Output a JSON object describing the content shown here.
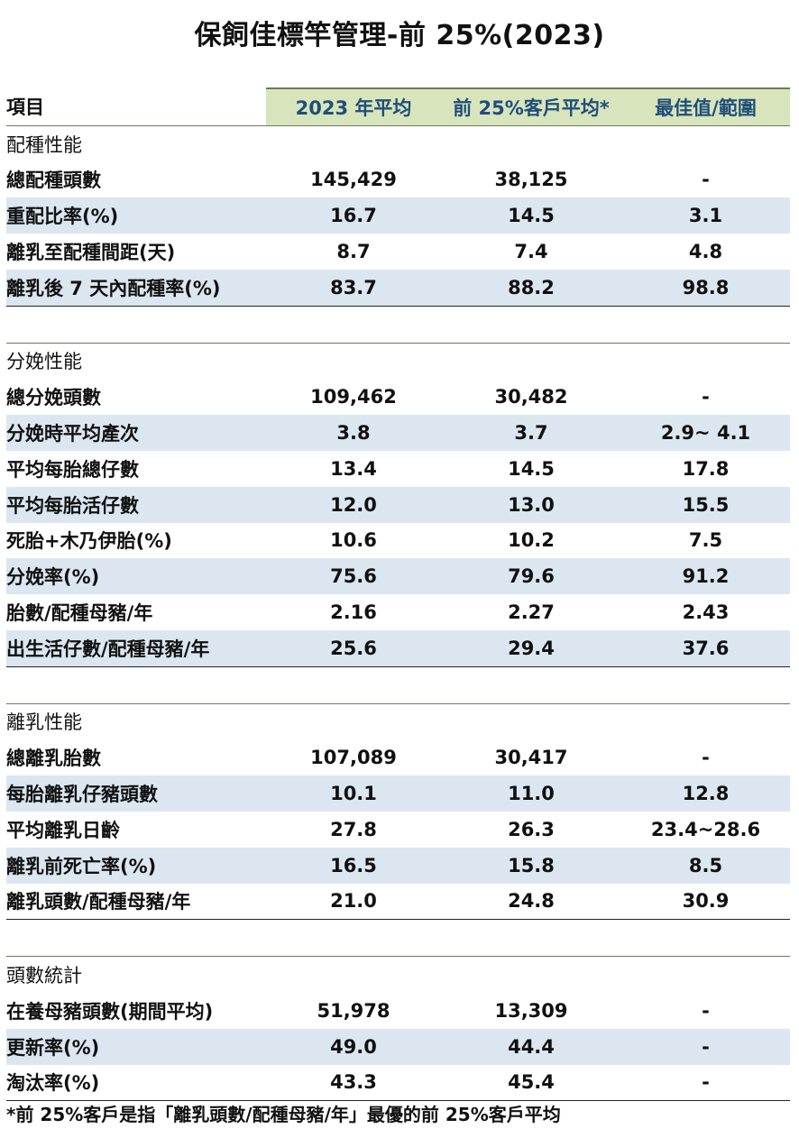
{
  "title": "保飼佳標竿管理-前 25%(2023)",
  "headers": {
    "item": "項目",
    "avg": "2023 年平均",
    "top25": "前 25%客戶平均*",
    "best": "最佳值/範圍"
  },
  "sections": [
    {
      "name": "配種性能",
      "rows": [
        {
          "item": "總配種頭數",
          "avg": "145,429",
          "top25": "38,125",
          "best": "-"
        },
        {
          "item": "重配比率(%)",
          "avg": "16.7",
          "top25": "14.5",
          "best": "3.1"
        },
        {
          "item": "離乳至配種間距(天)",
          "avg": "8.7",
          "top25": "7.4",
          "best": "4.8"
        },
        {
          "item": "離乳後 7 天內配種率(%)",
          "avg": "83.7",
          "top25": "88.2",
          "best": "98.8"
        }
      ]
    },
    {
      "name": "分娩性能",
      "rows": [
        {
          "item": "總分娩頭數",
          "avg": "109,462",
          "top25": "30,482",
          "best": "-"
        },
        {
          "item": "分娩時平均產次",
          "avg": "3.8",
          "top25": "3.7",
          "best": "2.9~ 4.1"
        },
        {
          "item": "平均每胎總仔數",
          "avg": "13.4",
          "top25": "14.5",
          "best": "17.8"
        },
        {
          "item": "平均每胎活仔數",
          "avg": "12.0",
          "top25": "13.0",
          "best": "15.5"
        },
        {
          "item": "死胎+木乃伊胎(%)",
          "avg": "10.6",
          "top25": "10.2",
          "best": "7.5"
        },
        {
          "item": "分娩率(%)",
          "avg": "75.6",
          "top25": "79.6",
          "best": "91.2"
        },
        {
          "item": "胎數/配種母豬/年",
          "avg": "2.16",
          "top25": "2.27",
          "best": "2.43"
        },
        {
          "item": "出生活仔數/配種母豬/年",
          "avg": "25.6",
          "top25": "29.4",
          "best": "37.6"
        }
      ]
    },
    {
      "name": "離乳性能",
      "rows": [
        {
          "item": "總離乳胎數",
          "avg": "107,089",
          "top25": "30,417",
          "best": "-"
        },
        {
          "item": "每胎離乳仔豬頭數",
          "avg": "10.1",
          "top25": "11.0",
          "best": "12.8"
        },
        {
          "item": "平均離乳日齡",
          "avg": "27.8",
          "top25": "26.3",
          "best": "23.4~28.6"
        },
        {
          "item": "離乳前死亡率(%)",
          "avg": "16.5",
          "top25": "15.8",
          "best": "8.5"
        },
        {
          "item": "離乳頭數/配種母豬/年",
          "avg": "21.0",
          "top25": "24.8",
          "best": "30.9"
        }
      ]
    },
    {
      "name": "頭數統計",
      "rows": [
        {
          "item": "在養母豬頭數(期間平均)",
          "avg": "51,978",
          "top25": "13,309",
          "best": "-"
        },
        {
          "item": "更新率(%)",
          "avg": "49.0",
          "top25": "44.4",
          "best": "-"
        },
        {
          "item": "淘汰率(%)",
          "avg": "43.3",
          "top25": "45.4",
          "best": "-"
        }
      ]
    }
  ],
  "footnote": "*前 25%客戶是指「離乳頭數/配種母豬/年」最優的前 25%客戶平均"
}
